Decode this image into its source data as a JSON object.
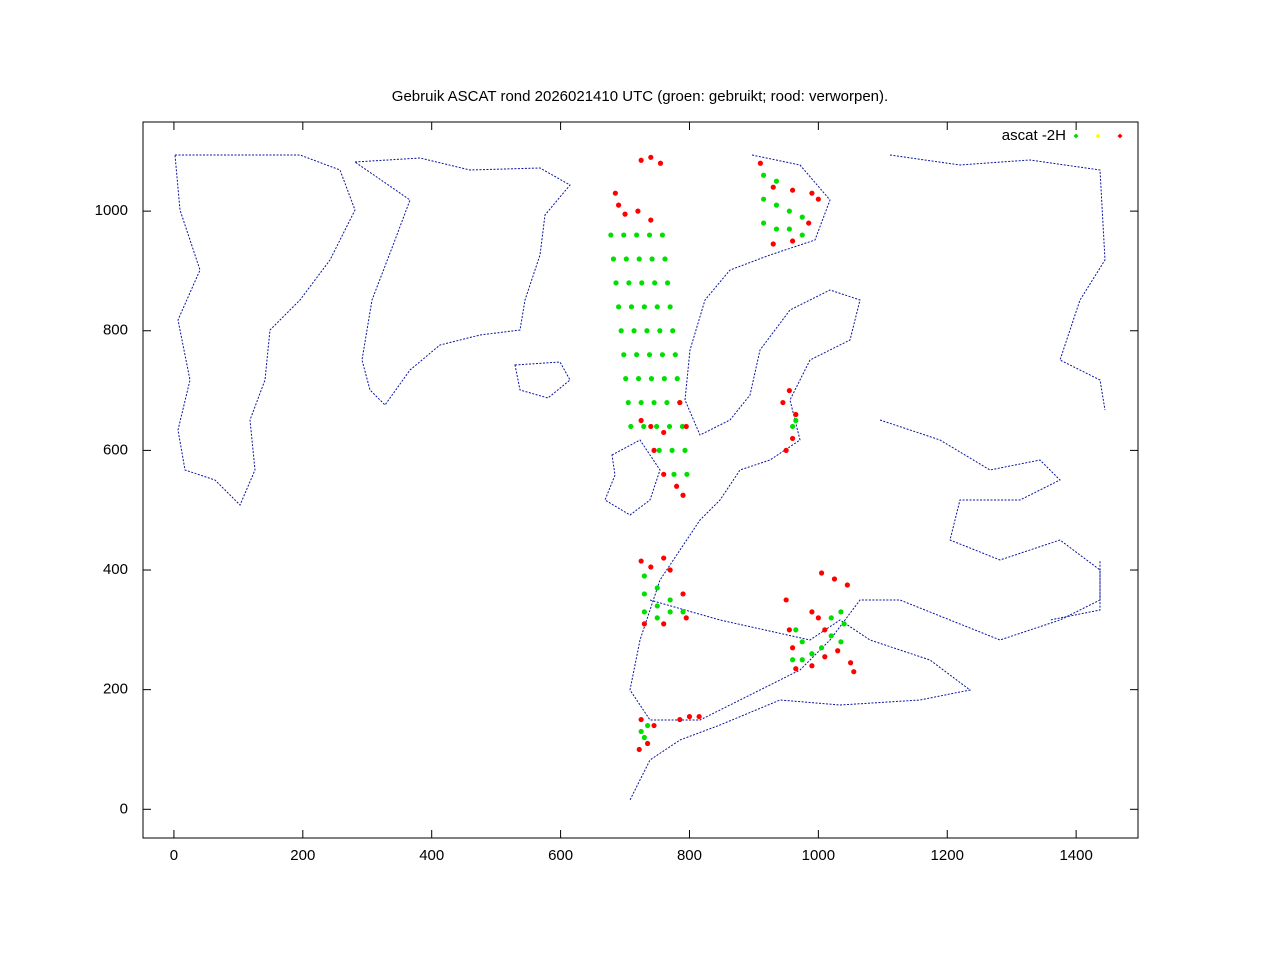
{
  "chart_data": {
    "type": "scatter",
    "title": "Gebruik ASCAT rond 2026021410 UTC (groen: gebruikt; rood: verworpen).",
    "legend_label": "ascat -2H",
    "legend": "upper right",
    "xlim": [
      -48,
      1496
    ],
    "ylim": [
      -48,
      1149
    ],
    "xticks": [
      0,
      200,
      400,
      600,
      800,
      1000,
      1200,
      1400
    ],
    "yticks": [
      0,
      200,
      400,
      600,
      800,
      1000
    ],
    "series": [
      {
        "color": "#00e000",
        "x": [
          678,
          698,
          718,
          738,
          758,
          682,
          702,
          722,
          742,
          762,
          686,
          706,
          726,
          746,
          766,
          690,
          710,
          730,
          750,
          770,
          694,
          714,
          734,
          754,
          774,
          698,
          718,
          738,
          758,
          778,
          701,
          721,
          741,
          761,
          781,
          705,
          725,
          745,
          765,
          785,
          709,
          729,
          749,
          769,
          789,
          753,
          773,
          793,
          776,
          796,
          730,
          730,
          730,
          750,
          750,
          750,
          770,
          770,
          790,
          915,
          915,
          915,
          935,
          935,
          955,
          955,
          975,
          975,
          935,
          960,
          965,
          960,
          975,
          975,
          990,
          1020,
          1035,
          1020,
          1040,
          1035,
          1005,
          965,
          730,
          735,
          725
        ],
        "values": [
          960,
          960,
          960,
          960,
          960,
          920,
          920,
          920,
          920,
          920,
          880,
          880,
          880,
          880,
          880,
          840,
          840,
          840,
          840,
          840,
          800,
          800,
          800,
          800,
          800,
          760,
          760,
          760,
          760,
          760,
          720,
          720,
          720,
          720,
          720,
          680,
          680,
          680,
          680,
          680,
          640,
          640,
          640,
          640,
          640,
          600,
          600,
          600,
          560,
          560,
          390,
          360,
          330,
          370,
          340,
          320,
          350,
          330,
          330,
          1060,
          1020,
          980,
          1010,
          970,
          1000,
          970,
          990,
          960,
          1050,
          640,
          650,
          250,
          250,
          280,
          260,
          290,
          280,
          320,
          310,
          330,
          270,
          300,
          120,
          140,
          130
        ]
      },
      {
        "color": "#ffff00",
        "x": [],
        "values": []
      },
      {
        "color": "#ff0000",
        "x": [
          725,
          740,
          755,
          685,
          690,
          700,
          720,
          740,
          910,
          930,
          960,
          990,
          1000,
          985,
          960,
          930,
          725,
          740,
          760,
          745,
          760,
          780,
          790,
          785,
          795,
          945,
          955,
          965,
          960,
          950,
          725,
          740,
          760,
          770,
          790,
          795,
          760,
          730,
          1005,
          1025,
          1045,
          950,
          955,
          960,
          965,
          990,
          1010,
          1030,
          1050,
          1055,
          1000,
          1010,
          990,
          722,
          735,
          745,
          725,
          785,
          800,
          815
        ],
        "values": [
          1085,
          1090,
          1080,
          1030,
          1010,
          995,
          1000,
          985,
          1080,
          1040,
          1035,
          1030,
          1020,
          980,
          950,
          945,
          650,
          640,
          630,
          600,
          560,
          540,
          525,
          680,
          640,
          680,
          700,
          660,
          620,
          600,
          415,
          405,
          420,
          400,
          360,
          320,
          310,
          310,
          395,
          385,
          375,
          350,
          300,
          270,
          235,
          240,
          255,
          265,
          245,
          230,
          320,
          300,
          330,
          100,
          110,
          140,
          150,
          150,
          155,
          155
        ]
      }
    ]
  }
}
